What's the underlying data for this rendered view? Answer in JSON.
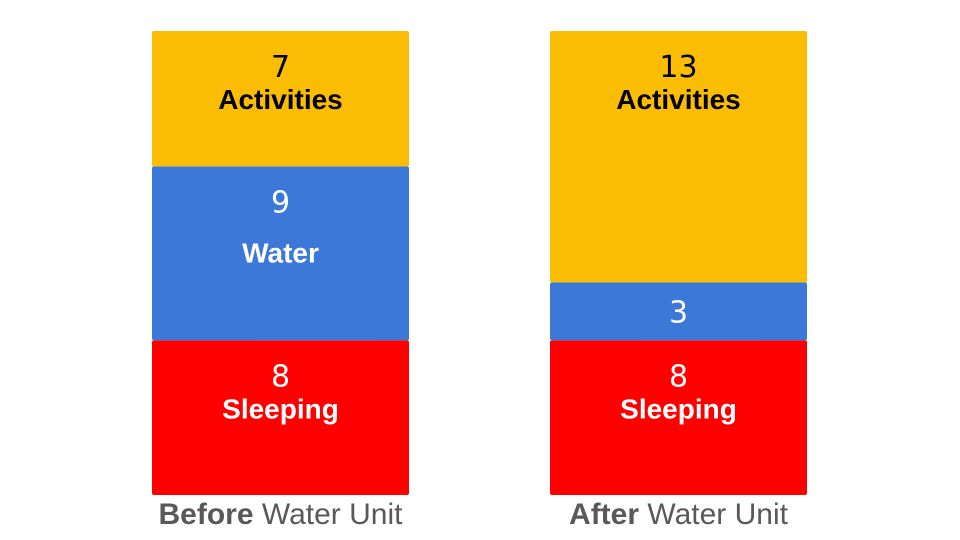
{
  "chart_data": {
    "type": "bar",
    "stacked": true,
    "categories": [
      {
        "bold": "Before",
        "rest": " Water Unit"
      },
      {
        "bold": "After",
        "rest": " Water Unit"
      }
    ],
    "series": [
      {
        "name": "Sleeping",
        "color": "#ff0000",
        "text_color": "#ffffff",
        "values": [
          8,
          8
        ],
        "labels": [
          "Sleeping",
          "Sleeping"
        ]
      },
      {
        "name": "Water",
        "color": "#3c78d8",
        "text_color": "#ffffff",
        "values": [
          9,
          3
        ],
        "labels": [
          "Water",
          ""
        ]
      },
      {
        "name": "Activities",
        "color": "#fbbc04",
        "text_color": "#000000",
        "values": [
          7,
          13
        ],
        "labels": [
          "Activities",
          "Activities"
        ]
      }
    ],
    "ylim": [
      0,
      24
    ],
    "grid": false,
    "legend": "none"
  }
}
